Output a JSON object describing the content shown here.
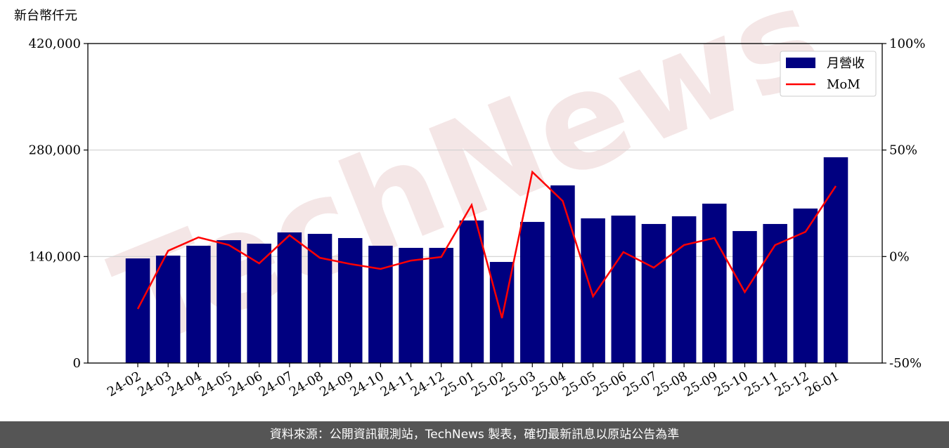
{
  "chart_data": {
    "type": "bar_line",
    "watermark": "TechNews",
    "ylabel": "新台幣仟元",
    "categories": [
      "24-02",
      "24-03",
      "24-04",
      "24-05",
      "24-06",
      "24-07",
      "24-08",
      "24-09",
      "24-10",
      "24-11",
      "24-12",
      "25-01",
      "25-02",
      "25-03",
      "25-04",
      "25-05",
      "25-06",
      "25-07",
      "25-08",
      "25-09",
      "25-10",
      "25-11",
      "25-12",
      "26-01"
    ],
    "series": [
      {
        "name": "月營收",
        "type": "bar",
        "color": "#000080",
        "values": [
          137500,
          141200,
          154200,
          161500,
          156900,
          171700,
          169800,
          164300,
          154200,
          151400,
          151400,
          187400,
          132900,
          185500,
          233500,
          190200,
          193800,
          182800,
          192900,
          209500,
          173500,
          182800,
          203100,
          270500
        ]
      },
      {
        "name": "MoM",
        "type": "line",
        "axis": "y2",
        "color": "#ff0000",
        "values": [
          -24.6,
          2.7,
          9.0,
          5.4,
          -3.2,
          10.0,
          -0.6,
          -3.5,
          -5.8,
          -1.9,
          -0.2,
          24.2,
          -28.9,
          39.7,
          26.1,
          -18.7,
          2.1,
          -5.2,
          5.4,
          8.7,
          -16.7,
          5.4,
          11.6,
          33.1
        ]
      }
    ],
    "ylim": [
      0,
      420000
    ],
    "yticks": [
      0,
      {
        "value": 140000,
        "label": "140,000"
      },
      {
        "value": 280000,
        "label": "280,000"
      },
      {
        "value": 420000,
        "label": "420,000"
      }
    ],
    "y2lim": [
      -50,
      100
    ],
    "y2ticks": [
      {
        "value": -50,
        "label": "-50%"
      },
      {
        "value": 0,
        "label": "0%"
      },
      {
        "value": 50,
        "label": "50%"
      },
      {
        "value": 100,
        "label": "100%"
      }
    ],
    "grid": true,
    "legend": "upper right",
    "footer": "資料來源：公開資訊觀測站，TechNews 製表，確切最新訊息以原站公告為準"
  }
}
